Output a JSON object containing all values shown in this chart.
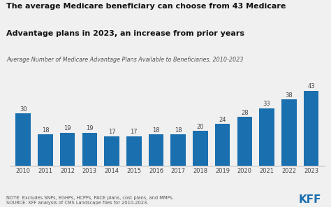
{
  "title_line1": "The average Medicare beneficiary can choose from 43 Medicare",
  "title_line2": "Advantage plans in 2023, an increase from prior years",
  "subtitle": "Average Number of Medicare Advantage Plans Available to Beneficiaries, 2010-2023",
  "note": "NOTE: Excludes SNPs, EGHPs, HCPPs, PACE plans, cost plans, and MMPs.\nSOURCE: KFF analysis of CMS Landscape files for 2010-2023.",
  "kff_label": "KFF",
  "categories": [
    "2010",
    "2011",
    "2012",
    "2013",
    "2014",
    "2015",
    "2016",
    "2017",
    "2018",
    "2019",
    "2020",
    "2021",
    "2022",
    "2023"
  ],
  "values": [
    30,
    18,
    19,
    19,
    17,
    17,
    18,
    18,
    20,
    24,
    28,
    33,
    38,
    43
  ],
  "bar_color": "#1a6faf",
  "background_color": "#f0f0f0",
  "title_fontsize": 8.0,
  "subtitle_fontsize": 5.8,
  "label_fontsize": 6.0,
  "note_fontsize": 4.8,
  "kff_fontsize": 11,
  "ylabel_max": 50,
  "bar_label_color": "#444444",
  "text_color": "#111111"
}
